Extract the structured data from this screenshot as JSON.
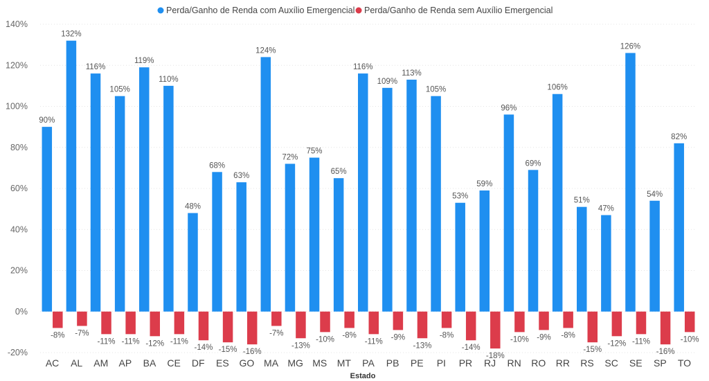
{
  "chart_data": {
    "type": "bar",
    "xlabel": "Estado",
    "ylabel": "",
    "ylim": [
      -20,
      140
    ],
    "yticks": [
      -20,
      0,
      20,
      40,
      60,
      80,
      100,
      120,
      140
    ],
    "ytick_suffix": "%",
    "grid": true,
    "legend_position": "top-center",
    "categories": [
      "AC",
      "AL",
      "AM",
      "AP",
      "BA",
      "CE",
      "DF",
      "ES",
      "GO",
      "MA",
      "MG",
      "MS",
      "MT",
      "PA",
      "PB",
      "PE",
      "PI",
      "PR",
      "RJ",
      "RN",
      "RO",
      "RR",
      "RS",
      "SC",
      "SE",
      "SP",
      "TO"
    ],
    "series": [
      {
        "name": "Perda/Ganho de Renda com Auxílio Emergencial",
        "color": "#1f8ff0",
        "values": [
          90,
          132,
          116,
          105,
          119,
          110,
          48,
          68,
          63,
          124,
          72,
          75,
          65,
          116,
          109,
          113,
          105,
          53,
          59,
          96,
          69,
          106,
          51,
          47,
          126,
          54,
          82
        ]
      },
      {
        "name": "Perda/Ganho de Renda sem Auxílio Emergencial",
        "color": "#dc3c4b",
        "values": [
          -8,
          -7,
          -11,
          -11,
          -12,
          -11,
          -14,
          -15,
          -16,
          -7,
          -13,
          -10,
          -8,
          -11,
          -9,
          -13,
          -8,
          -14,
          -18,
          -10,
          -9,
          -8,
          -15,
          -12,
          -11,
          -16,
          -10
        ]
      }
    ]
  }
}
